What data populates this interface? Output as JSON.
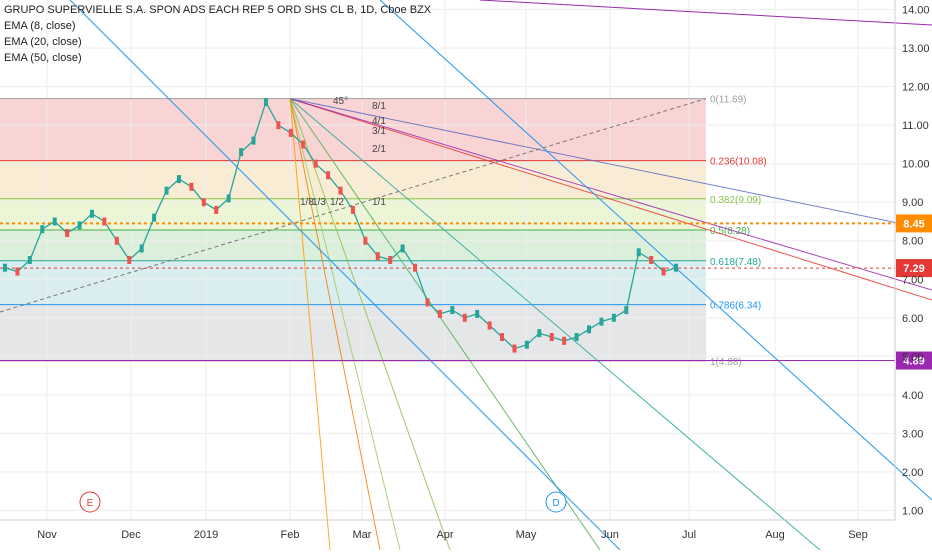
{
  "header": {
    "title": "GRUPO SUPERVIELLE S.A. SPON ADS EACH REP 5 ORD SHS CL B, 1D, Cboe BZX",
    "indicators": [
      "EMA (8, close)",
      "EMA (20, close)",
      "EMA (50, close)"
    ]
  },
  "chart_data": {
    "type": "line",
    "title": "GRUPO SUPERVIELLE S.A. SPON ADS EACH REP 5 ORD SHS CL B, 1D, Cboe BZX",
    "xlabel": "",
    "ylabel": "",
    "ylim": [
      0.75,
      14.25
    ],
    "y_ticks": [
      "1.00",
      "2.00",
      "3.00",
      "4.00",
      "5.00",
      "6.00",
      "7.00",
      "8.00",
      "9.00",
      "10.00",
      "11.00",
      "12.00",
      "13.00",
      "14.00"
    ],
    "x_ticks": [
      "Nov",
      "Dec",
      "2019",
      "Feb",
      "Mar",
      "Apr",
      "May",
      "Jun",
      "Jul",
      "Aug",
      "Sep"
    ],
    "price_labels": [
      {
        "text": "8.45",
        "value": 8.45,
        "color": "#ff8c00"
      },
      {
        "text": "7.29",
        "value": 7.29,
        "color": "#e53935"
      },
      {
        "text": "4.89",
        "value": 4.89,
        "color": "#9c27b0"
      }
    ],
    "fib_levels": [
      {
        "label": "0(11.69)",
        "value": 11.69,
        "color": "#9e9e9e"
      },
      {
        "label": "0.236(10.08)",
        "value": 10.08,
        "color": "#e53935"
      },
      {
        "label": "0.382(9.09)",
        "value": 9.09,
        "color": "#8bc34a"
      },
      {
        "label": "0.5(8.28)",
        "value": 8.28,
        "color": "#4caf50"
      },
      {
        "label": "0.618(7.48)",
        "value": 7.48,
        "color": "#26a69a"
      },
      {
        "label": "0.786(6.34)",
        "value": 6.34,
        "color": "#2196f3"
      },
      {
        "label": "1(4.88)",
        "value": 4.88,
        "color": "#9e9e9e"
      }
    ],
    "gann_labels": [
      "45°",
      "8/1",
      "4/1",
      "3/1",
      "2/1",
      "1/8",
      "1/3",
      "1/2",
      "1/1"
    ],
    "event_markers": [
      "E",
      "D"
    ],
    "series": [
      {
        "name": "price",
        "values": [
          [
            0,
            7.3
          ],
          [
            0.3,
            7.2
          ],
          [
            0.6,
            7.5
          ],
          [
            0.9,
            8.3
          ],
          [
            1.2,
            8.5
          ],
          [
            1.5,
            8.2
          ],
          [
            1.8,
            8.4
          ],
          [
            2.1,
            8.7
          ],
          [
            2.4,
            8.5
          ],
          [
            2.7,
            8.0
          ],
          [
            3.0,
            7.5
          ],
          [
            3.3,
            7.8
          ],
          [
            3.6,
            8.6
          ],
          [
            3.9,
            9.3
          ],
          [
            4.2,
            9.6
          ],
          [
            4.5,
            9.4
          ],
          [
            4.8,
            9.0
          ],
          [
            5.1,
            8.8
          ],
          [
            5.4,
            9.1
          ],
          [
            5.7,
            10.3
          ],
          [
            6.0,
            10.6
          ],
          [
            6.3,
            11.6
          ],
          [
            6.6,
            11.0
          ],
          [
            6.9,
            10.8
          ],
          [
            7.2,
            10.5
          ],
          [
            7.5,
            10.0
          ],
          [
            7.8,
            9.7
          ],
          [
            8.1,
            9.3
          ],
          [
            8.4,
            8.8
          ],
          [
            8.7,
            8.0
          ],
          [
            9.0,
            7.6
          ],
          [
            9.3,
            7.5
          ],
          [
            9.6,
            7.8
          ],
          [
            9.9,
            7.3
          ],
          [
            10.2,
            6.4
          ],
          [
            10.5,
            6.1
          ],
          [
            10.8,
            6.2
          ],
          [
            11.1,
            6.0
          ],
          [
            11.4,
            6.1
          ],
          [
            11.7,
            5.8
          ],
          [
            12.0,
            5.5
          ],
          [
            12.3,
            5.2
          ],
          [
            12.6,
            5.3
          ],
          [
            12.9,
            5.6
          ],
          [
            13.2,
            5.5
          ],
          [
            13.5,
            5.4
          ],
          [
            13.8,
            5.5
          ],
          [
            14.1,
            5.7
          ],
          [
            14.4,
            5.9
          ],
          [
            14.7,
            6.0
          ],
          [
            15.0,
            6.2
          ],
          [
            15.3,
            7.7
          ],
          [
            15.6,
            7.5
          ],
          [
            15.9,
            7.2
          ],
          [
            16.2,
            7.3
          ]
        ]
      },
      {
        "name": "ema_8",
        "values": []
      },
      {
        "name": "ema_20",
        "values": []
      },
      {
        "name": "ema_50",
        "values": []
      }
    ],
    "grid": true,
    "legend": "top-left"
  }
}
